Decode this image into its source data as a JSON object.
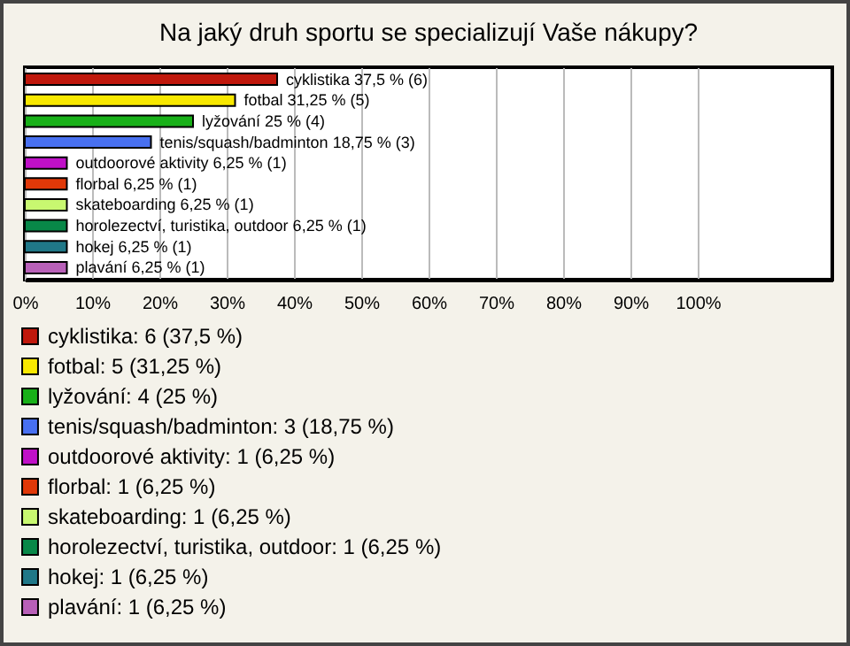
{
  "chart_data": {
    "type": "bar",
    "orientation": "horizontal",
    "stacked": true,
    "title": "Na jaký druh sportu se specializují Vaše nákupy?",
    "categories": [
      null,
      null,
      null,
      null,
      null,
      null,
      null,
      null,
      null,
      null
    ],
    "series": [
      {
        "name": "cyklistika: 6 (37,5 %)",
        "color": "#c0180c",
        "values": [
          37.5,
          null,
          null,
          null,
          null,
          null,
          null,
          null,
          null,
          null
        ],
        "value_labels": [
          "cyklistika 37,5 % (6)",
          null,
          null,
          null,
          null,
          null,
          null,
          null,
          null,
          null
        ]
      },
      {
        "name": "fotbal: 5 (31,25 %)",
        "color": "#f8e800",
        "values": [
          null,
          31.25,
          null,
          null,
          null,
          null,
          null,
          null,
          null,
          null
        ],
        "value_labels": [
          null,
          "fotbal 31,25 % (5)",
          null,
          null,
          null,
          null,
          null,
          null,
          null,
          null
        ]
      },
      {
        "name": "lyžování: 4 (25 %)",
        "color": "#18b018",
        "values": [
          null,
          null,
          25,
          null,
          null,
          null,
          null,
          null,
          null,
          null
        ],
        "value_labels": [
          null,
          null,
          "lyžování 25 % (4)",
          null,
          null,
          null,
          null,
          null,
          null,
          null
        ]
      },
      {
        "name": "tenis/squash/badminton: 3 (18,75 %)",
        "color": "#4870f0",
        "values": [
          null,
          null,
          null,
          18.75,
          null,
          null,
          null,
          null,
          null,
          null
        ],
        "value_labels": [
          null,
          null,
          null,
          "tenis/squash/badminton 18,75 % (3)",
          null,
          null,
          null,
          null,
          null,
          null
        ]
      },
      {
        "name": "outdoorové aktivity: 1 (6,25 %)",
        "color": "#c010c8",
        "values": [
          null,
          null,
          null,
          null,
          6.25,
          null,
          null,
          null,
          null,
          null
        ],
        "value_labels": [
          null,
          null,
          null,
          null,
          "outdoorové aktivity 6,25 % (1)",
          null,
          null,
          null,
          null,
          null
        ]
      },
      {
        "name": "florbal: 1 (6,25 %)",
        "color": "#e03808",
        "values": [
          null,
          null,
          null,
          null,
          null,
          6.25,
          null,
          null,
          null,
          null
        ],
        "value_labels": [
          null,
          null,
          null,
          null,
          null,
          "florbal 6,25 % (1)",
          null,
          null,
          null,
          null
        ]
      },
      {
        "name": "skateboarding: 1 (6,25 %)",
        "color": "#c8f870",
        "values": [
          null,
          null,
          null,
          null,
          null,
          null,
          6.25,
          null,
          null,
          null
        ],
        "value_labels": [
          null,
          null,
          null,
          null,
          null,
          null,
          "skateboarding 6,25 % (1)",
          null,
          null,
          null
        ]
      },
      {
        "name": "horolezectví, turistika, outdoor: 1 (6,25 %)",
        "color": "#088848",
        "values": [
          null,
          null,
          null,
          null,
          null,
          null,
          null,
          6.25,
          null,
          null
        ],
        "value_labels": [
          null,
          null,
          null,
          null,
          null,
          null,
          null,
          "horolezectví, turistika, outdoor 6,25 % (1)",
          null,
          null
        ]
      },
      {
        "name": "hokej: 1 (6,25 %)",
        "color": "#207888",
        "values": [
          null,
          null,
          null,
          null,
          null,
          null,
          null,
          null,
          6.25,
          null
        ],
        "value_labels": [
          null,
          null,
          null,
          null,
          null,
          null,
          null,
          null,
          "hokej 6,25 % (1)",
          null
        ]
      },
      {
        "name": "plavání: 1 (6,25 %)",
        "color": "#b860b8",
        "values": [
          null,
          null,
          null,
          null,
          null,
          null,
          null,
          null,
          null,
          6.25
        ],
        "value_labels": [
          null,
          null,
          null,
          null,
          null,
          null,
          null,
          null,
          null,
          "plavání 6,25 % (1)"
        ]
      }
    ],
    "xlim": [
      0,
      120
    ],
    "xticks": [
      {
        "value": 0,
        "label": "0%"
      },
      {
        "value": 10,
        "label": "10%"
      },
      {
        "value": 20,
        "label": "20%"
      },
      {
        "value": 30,
        "label": "30%"
      },
      {
        "value": 40,
        "label": "40%"
      },
      {
        "value": 50,
        "label": "50%"
      },
      {
        "value": 60,
        "label": "60%"
      },
      {
        "value": 70,
        "label": "70%"
      },
      {
        "value": 80,
        "label": "80%"
      },
      {
        "value": 90,
        "label": "90%"
      },
      {
        "value": 100,
        "label": "100%"
      }
    ],
    "grid": "x",
    "legend": "bottom",
    "tick_labels": "x"
  }
}
